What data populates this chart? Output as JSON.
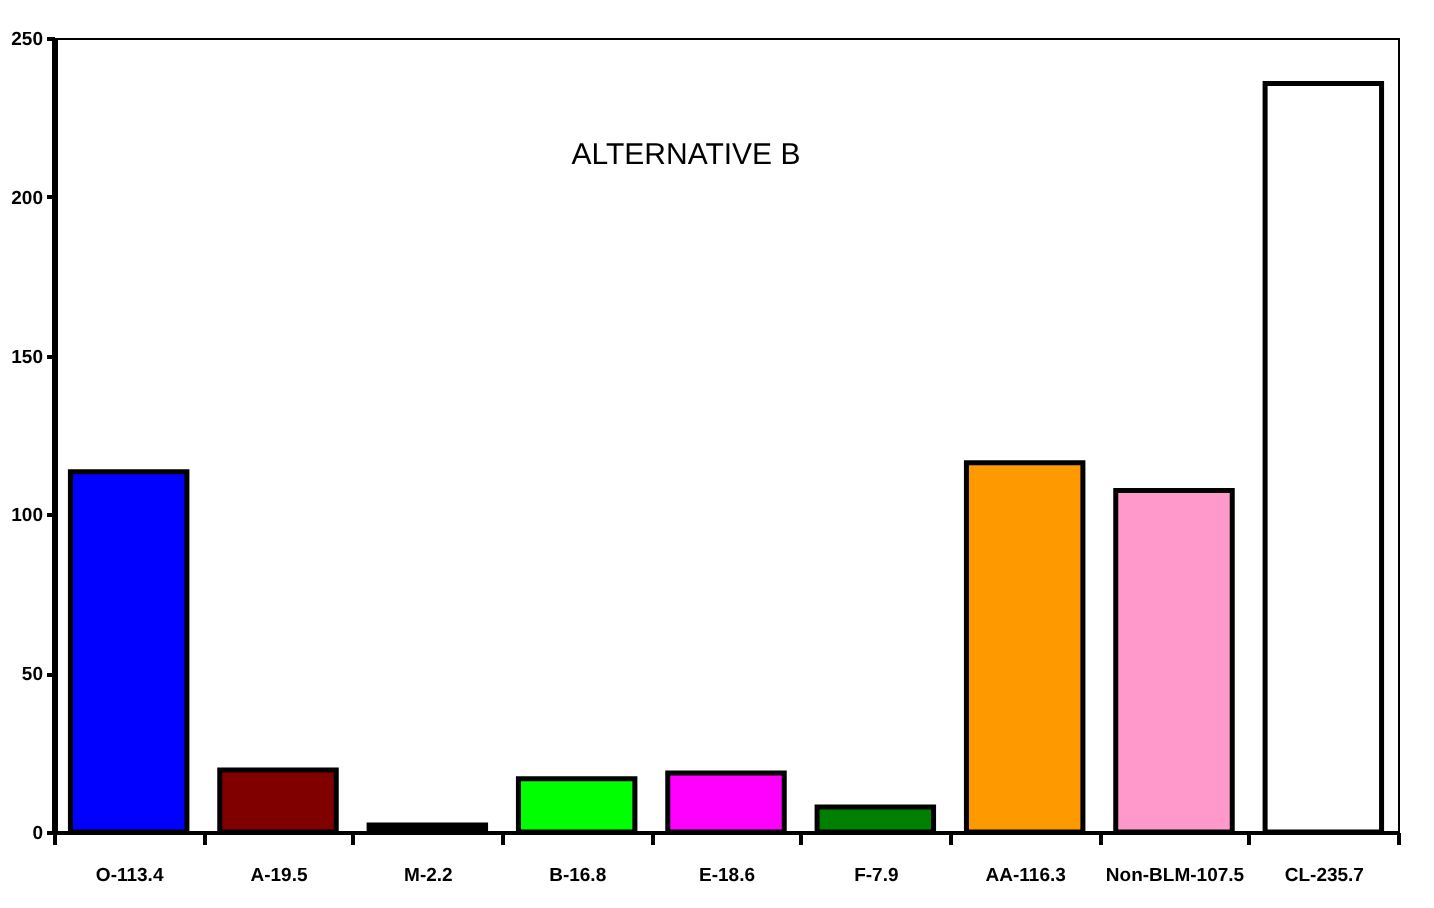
{
  "chart_data": {
    "type": "bar",
    "title": "ALTERNATIVE B",
    "categories": [
      "O-113.4",
      "A-19.5",
      "M-2.2",
      "B-16.8",
      "E-18.6",
      "F-7.9",
      "AA-116.3",
      "Non-BLM-107.5",
      "CL-235.7"
    ],
    "values": [
      113.4,
      19.5,
      2.2,
      16.8,
      18.6,
      7.9,
      116.3,
      107.5,
      235.7
    ],
    "colors": [
      "#0000ff",
      "#800000",
      "#000000",
      "#00ff00",
      "#ff00ff",
      "#008000",
      "#ff9900",
      "#ff99cc",
      "#ffffff"
    ],
    "ylim": [
      0,
      250
    ],
    "yticks": [
      0,
      50,
      100,
      150,
      200,
      250
    ],
    "grid": false,
    "legend": false
  }
}
